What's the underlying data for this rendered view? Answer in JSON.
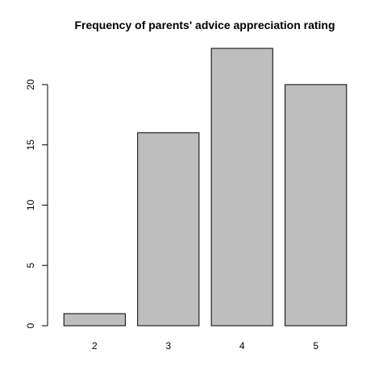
{
  "chart_data": {
    "type": "bar",
    "title": "Frequency of parents' advice appreciation rating",
    "xlabel": "",
    "ylabel": "",
    "categories": [
      "2",
      "3",
      "4",
      "5"
    ],
    "values": [
      1,
      16,
      23,
      20
    ],
    "ylim": [
      0,
      23
    ],
    "yticks": [
      0,
      5,
      10,
      15,
      20
    ],
    "bar_color": "#bebebe",
    "border_color": "#000000",
    "grid": false,
    "legend": "none"
  }
}
